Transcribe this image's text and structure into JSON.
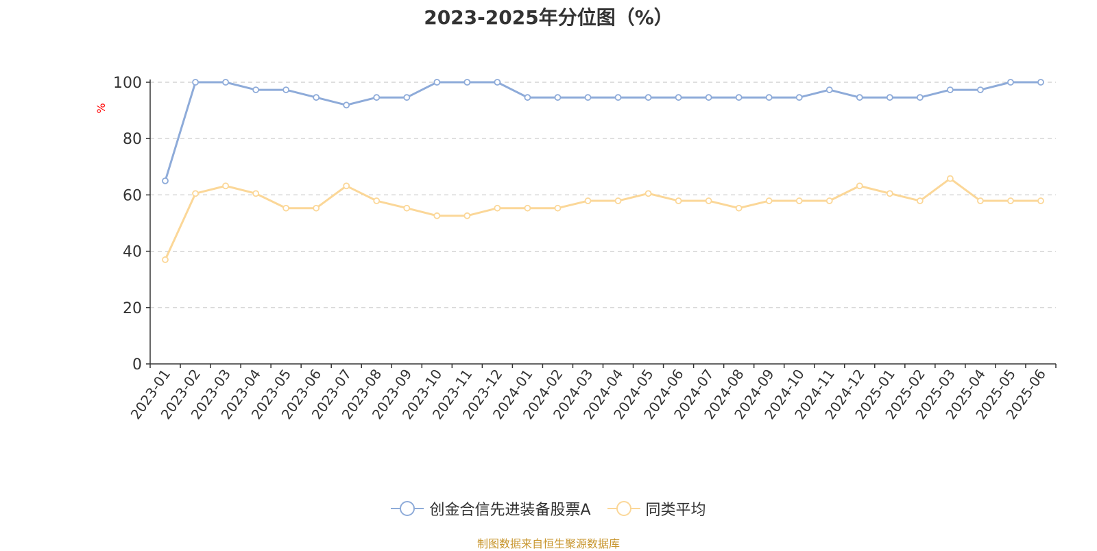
{
  "chart_data": {
    "type": "line",
    "title": "2023-2025年分位图（%）",
    "ylabel": "%",
    "xlabel": "",
    "ylim": [
      0,
      100
    ],
    "yticks": [
      0,
      20,
      40,
      60,
      80,
      100
    ],
    "grid": "horizontal dashed",
    "legend_position": "bottom-center",
    "categories": [
      "2023-01",
      "2023-02",
      "2023-03",
      "2023-04",
      "2023-05",
      "2023-06",
      "2023-07",
      "2023-08",
      "2023-09",
      "2023-10",
      "2023-11",
      "2023-12",
      "2024-01",
      "2024-02",
      "2024-03",
      "2024-04",
      "2024-05",
      "2024-06",
      "2024-07",
      "2024-08",
      "2024-09",
      "2024-10",
      "2024-11",
      "2024-12",
      "2025-01",
      "2025-02",
      "2025-03",
      "2025-04",
      "2025-05",
      "2025-06"
    ],
    "series": [
      {
        "name": "创金合信先进装备股票A",
        "color": "#8eabd9",
        "values": [
          65,
          100,
          100,
          97.3,
          97.3,
          94.6,
          91.9,
          94.6,
          94.6,
          100,
          100,
          100,
          94.6,
          94.6,
          94.6,
          94.6,
          94.6,
          94.6,
          94.6,
          94.6,
          94.6,
          94.6,
          97.3,
          94.6,
          94.6,
          94.6,
          97.3,
          97.3,
          100,
          100
        ]
      },
      {
        "name": "同类平均",
        "color": "#fbd798",
        "values": [
          37,
          60.5,
          63.2,
          60.5,
          55.3,
          55.3,
          63.2,
          57.9,
          55.3,
          52.6,
          52.6,
          55.3,
          55.3,
          55.3,
          57.9,
          57.9,
          60.5,
          57.9,
          57.9,
          55.3,
          57.9,
          57.9,
          57.9,
          63.2,
          60.5,
          57.9,
          65.8,
          57.9,
          57.9,
          57.9
        ]
      }
    ]
  },
  "source_text": "制图数据来自恒生聚源数据库",
  "colors": {
    "axis": "#333333",
    "grid": "#cccccc",
    "ylabel": "#ff0000",
    "source": "#c8962e",
    "title": "#333333"
  }
}
